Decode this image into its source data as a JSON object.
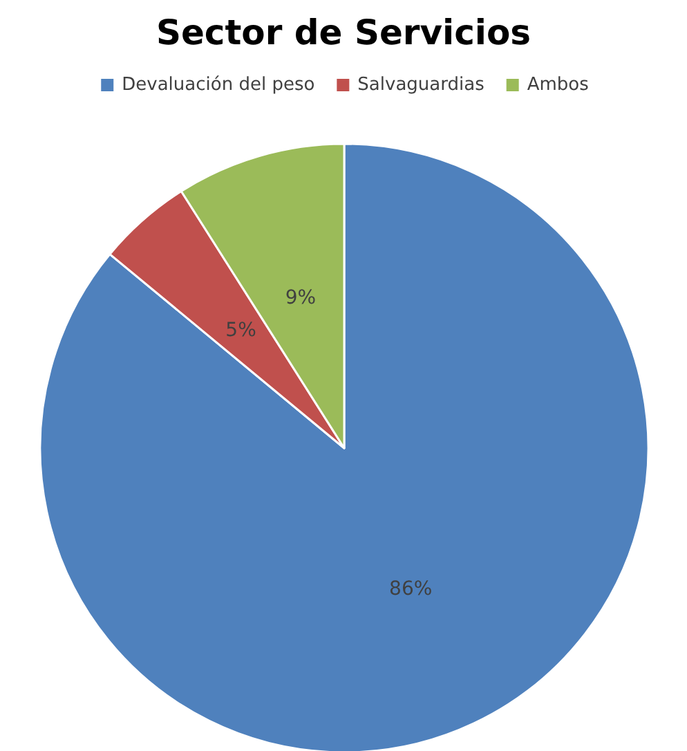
{
  "chart_data": {
    "type": "pie",
    "title": "Sector de Servicios",
    "categories": [
      "Devaluación del peso",
      "Salvaguardias",
      "Ambos"
    ],
    "values": [
      86,
      5,
      9
    ],
    "colors": [
      "#4f81bd",
      "#c0504d",
      "#9bbb59"
    ],
    "value_labels": [
      "86%",
      "5%",
      "9%"
    ],
    "legend": "top"
  }
}
